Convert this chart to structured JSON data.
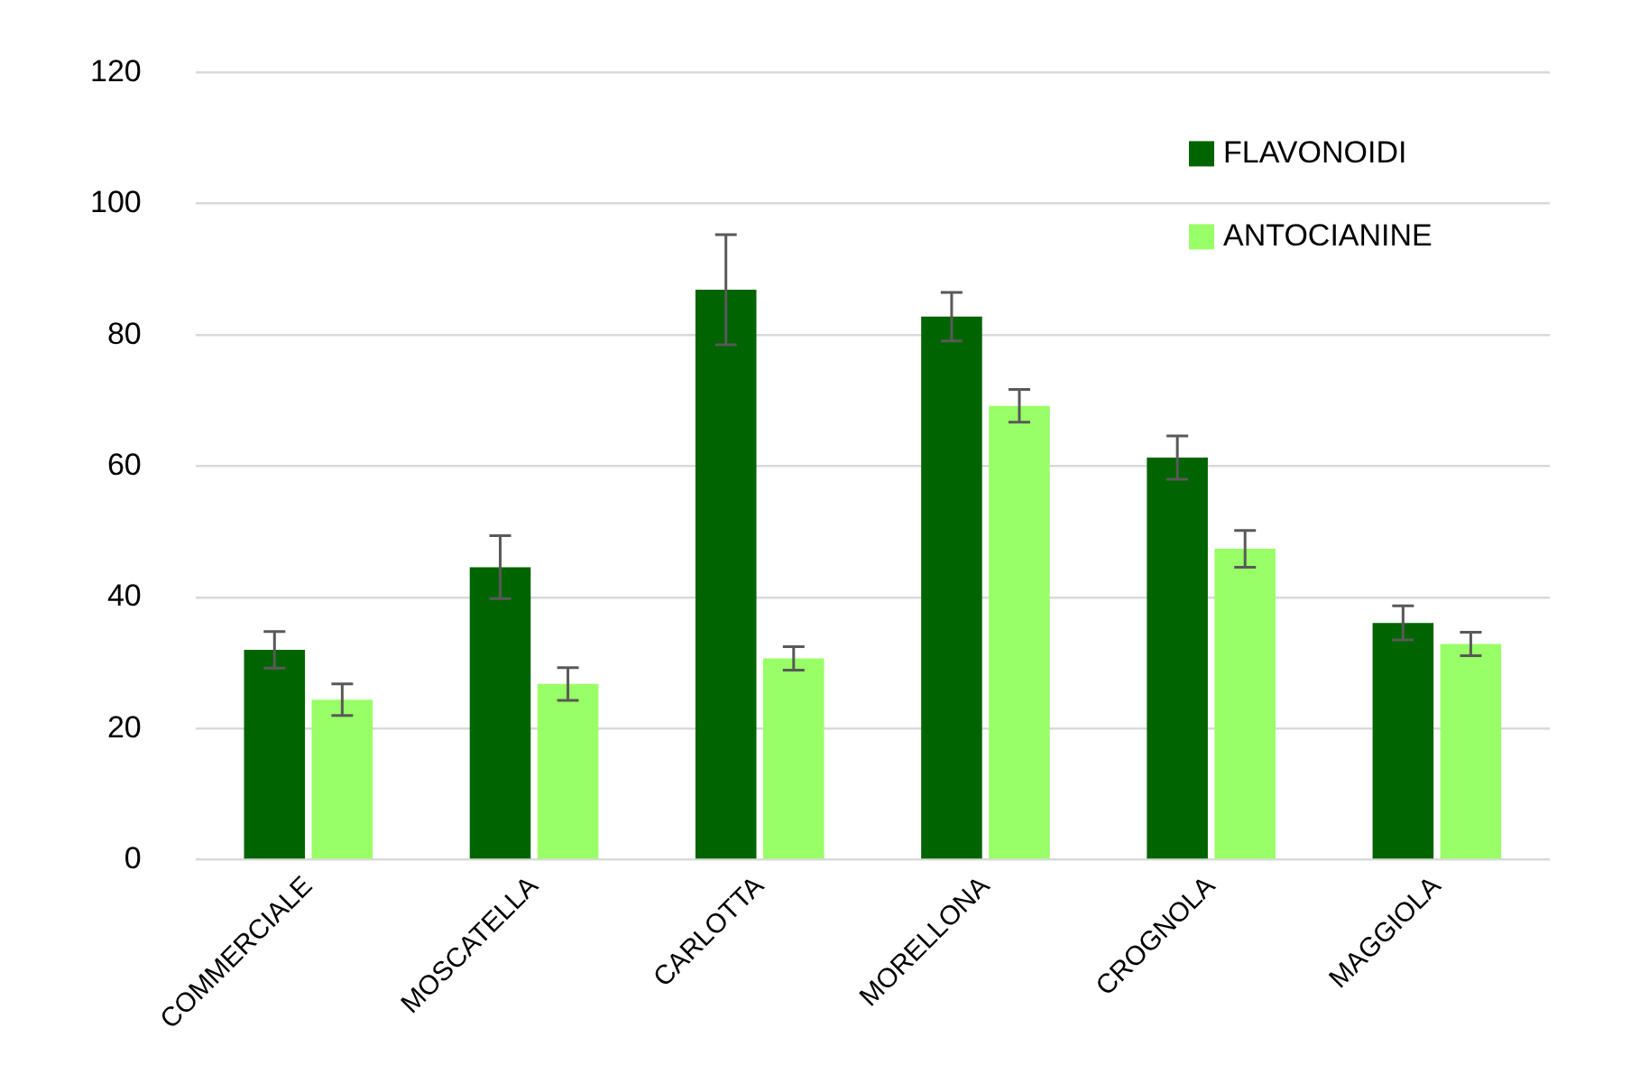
{
  "chart_data": {
    "type": "bar",
    "categories": [
      "COMMERCIALE",
      "MOSCATELLA",
      "CARLOTTA",
      "MORELLONA",
      "CROGNOLA",
      "MAGGIOLA"
    ],
    "series": [
      {
        "name": "FLAVONOIDI",
        "color": "#006400",
        "values": [
          32.0,
          44.6,
          86.9,
          82.8,
          61.3,
          36.1
        ],
        "errors": [
          2.8,
          4.8,
          8.4,
          3.7,
          3.3,
          2.6
        ]
      },
      {
        "name": "ANTOCIANINE",
        "color": "#99ff66",
        "values": [
          24.4,
          26.8,
          30.7,
          69.2,
          47.4,
          32.9
        ],
        "errors": [
          2.4,
          2.5,
          1.8,
          2.5,
          2.8,
          1.8
        ]
      }
    ],
    "ylim": [
      0,
      120
    ],
    "yticks": [
      0,
      20,
      40,
      60,
      80,
      100,
      120
    ],
    "grid": "y",
    "legend": "top right"
  }
}
